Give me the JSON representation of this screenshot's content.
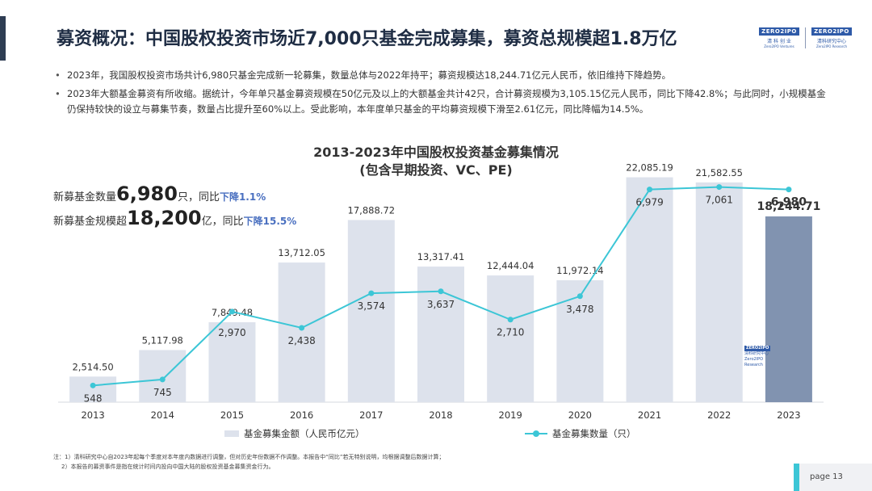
{
  "header": {
    "title": "募资概况：中国股权投资市场近7,000只基金完成募集，募资总规模超1.8万亿",
    "logos": [
      {
        "top": "ZERO2IPO",
        "mid": "清 科 创 业",
        "bot": "Zero2IPO Ventures"
      },
      {
        "top": "ZERO2IPO",
        "mid": "清科研究中心",
        "bot": "Zero2IPO Research"
      }
    ]
  },
  "bullets": [
    "2023年，我国股权投资市场共计6,980只基金完成新一轮募集，数量总体与2022年持平；募资规模达18,244.71亿元人民币，依旧维持下降趋势。",
    "2023年大额基金募资有所收缩。据统计，今年单只基金募资规模在50亿元及以上的大额基金共计42只，合计募资规模为3,105.15亿元人民币，同比下降42.8%；与此同时，小规模基金仍保持较快的设立与募集节奏，数量占比提升至60%以上。受此影响，本年度单只基金的平均募资规模下滑至2.61亿元，同比降幅为14.5%。"
  ],
  "kpis": [
    {
      "prefix": "新募基金数量",
      "value": "6,980",
      "unit": "只，同比",
      "delta": "下降1.1%"
    },
    {
      "prefix": "新募基金规模超",
      "value": "18,200",
      "unit": "亿，同比",
      "delta": "下降15.5%"
    }
  ],
  "chart_data": {
    "type": "bar",
    "title": "2013-2023年中国股权投资基金募集情况",
    "subtitle": "(包含早期投资、VC、PE)",
    "categories": [
      "2013",
      "2014",
      "2015",
      "2016",
      "2017",
      "2018",
      "2019",
      "2020",
      "2021",
      "2022",
      "2023"
    ],
    "series": [
      {
        "name": "基金募集金额（人民币亿元）",
        "kind": "bar",
        "values": [
          2514.5,
          5117.98,
          7849.48,
          13712.05,
          17888.72,
          13317.41,
          12444.04,
          11972.14,
          22085.19,
          21582.55,
          18244.71
        ],
        "labels": [
          "2,514.50",
          "5,117.98",
          "7,849.48",
          "13,712.05",
          "17,888.72",
          "13,317.41",
          "12,444.04",
          "11,972.14",
          "22,085.19",
          "21,582.55",
          "18,244.71"
        ]
      },
      {
        "name": "基金募集数量（只）",
        "kind": "line",
        "values": [
          548,
          745,
          2970,
          2438,
          3574,
          3637,
          2710,
          3478,
          6979,
          7061,
          6980
        ],
        "labels": [
          "548",
          "745",
          "2,970",
          "2,438",
          "3,574",
          "3,637",
          "2,710",
          "3,478",
          "6,979",
          "7,061",
          "6,980"
        ]
      }
    ],
    "ylim_bar": [
      0,
      23000
    ],
    "ylim_line": [
      0,
      7500
    ],
    "highlight_last": true,
    "grid": false,
    "legend": "bottom",
    "colors": {
      "bar": "#dde2ec",
      "bar_highlight": "#8193b0",
      "line": "#3cc6d6"
    }
  },
  "watermark": {
    "top": "ZERO2IPO",
    "mid": "清科研究中心",
    "bot": "Zero2IPO Research"
  },
  "notes": [
    "注：1）清科研究中心自2023年起每个季度对本年度内数据进行调整，但对历史年份数据不作调整。本报告中“同比”若无特别说明，均根据调整后数据计算；",
    "2）本报告的募资事件是指在统计时间内投向中国大陆的股权投资基金募集资金行为。"
  ],
  "footer": {
    "page_label": "page  13"
  }
}
